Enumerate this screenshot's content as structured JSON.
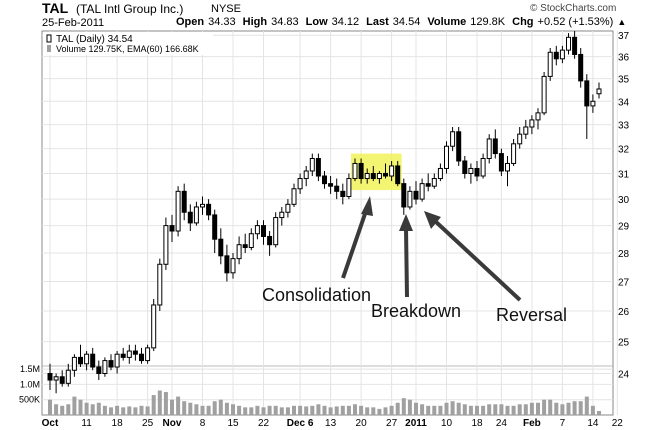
{
  "header": {
    "ticker": "TAL",
    "company": "(TAL Intl Group Inc.)",
    "exchange": "NYSE",
    "date": "25-Feb-2011",
    "quote": {
      "open_label": "Open",
      "open": "34.33",
      "high_label": "High",
      "high": "34.83",
      "low_label": "Low",
      "low": "34.12",
      "last_label": "Last",
      "last": "34.54",
      "volume_label": "Volume",
      "volume": "129.8K",
      "chg_label": "Chg",
      "chg": "+0.52 (+1.53%)"
    },
    "credit": "© StockCharts.com",
    "up_arrow_icon": "triangle-up-icon"
  },
  "legend": {
    "price": "TAL (Daily) 34.54",
    "volume": "Volume 129.75K, EMA(60) 166.68K"
  },
  "colors": {
    "up_candle": "#ffffff",
    "down_candle": "#000000",
    "volume_bar": "#a0a0a0",
    "grid": "#e4e4e4",
    "highlight": "#f2f25a"
  },
  "annotations": {
    "consolidation": "Consolidation",
    "breakdown": "Breakdown",
    "reversal": "Reversal"
  },
  "chart_data": {
    "type": "candlestick",
    "series_name": "TAL (Daily)",
    "x_tick_labels": [
      "Oct",
      "11",
      "18",
      "25",
      "Nov",
      "8",
      "15",
      "22",
      "Dec 6",
      "13",
      "20",
      "27",
      "2011",
      "10",
      "18",
      "24",
      "Feb",
      "7",
      "14",
      "22"
    ],
    "y_ticks": [
      24,
      25,
      26,
      27,
      28,
      29,
      30,
      31,
      32,
      33,
      34,
      35,
      36,
      37
    ],
    "ylim": [
      23.2,
      37.2
    ],
    "y_scale": "log",
    "volume_tick_labels": [
      "1.5M",
      "1.0M",
      "500K"
    ],
    "volume_ylim": [
      0,
      1600000
    ],
    "grid": true,
    "candles": [
      {
        "o": 24.0,
        "h": 24.3,
        "l": 23.5,
        "c": 23.8,
        "v": 500000
      },
      {
        "o": 23.8,
        "h": 24.0,
        "l": 23.4,
        "c": 23.9,
        "v": 350000
      },
      {
        "o": 23.9,
        "h": 24.1,
        "l": 23.6,
        "c": 23.7,
        "v": 300000
      },
      {
        "o": 23.7,
        "h": 24.3,
        "l": 23.6,
        "c": 24.1,
        "v": 350000
      },
      {
        "o": 24.1,
        "h": 24.6,
        "l": 23.9,
        "c": 24.5,
        "v": 600000
      },
      {
        "o": 24.5,
        "h": 24.9,
        "l": 24.2,
        "c": 24.3,
        "v": 500000
      },
      {
        "o": 24.3,
        "h": 24.7,
        "l": 24.1,
        "c": 24.6,
        "v": 400000
      },
      {
        "o": 24.6,
        "h": 24.8,
        "l": 24.1,
        "c": 24.2,
        "v": 350000
      },
      {
        "o": 24.2,
        "h": 24.4,
        "l": 23.8,
        "c": 24.0,
        "v": 400000
      },
      {
        "o": 24.0,
        "h": 24.5,
        "l": 23.9,
        "c": 24.4,
        "v": 300000
      },
      {
        "o": 24.4,
        "h": 24.6,
        "l": 24.1,
        "c": 24.2,
        "v": 250000
      },
      {
        "o": 24.2,
        "h": 24.7,
        "l": 24.0,
        "c": 24.6,
        "v": 300000
      },
      {
        "o": 24.6,
        "h": 24.8,
        "l": 24.4,
        "c": 24.5,
        "v": 250000
      },
      {
        "o": 24.5,
        "h": 24.9,
        "l": 24.3,
        "c": 24.7,
        "v": 280000
      },
      {
        "o": 24.7,
        "h": 24.9,
        "l": 24.4,
        "c": 24.6,
        "v": 250000
      },
      {
        "o": 24.6,
        "h": 24.8,
        "l": 24.3,
        "c": 24.4,
        "v": 300000
      },
      {
        "o": 24.4,
        "h": 24.9,
        "l": 24.3,
        "c": 24.8,
        "v": 280000
      },
      {
        "o": 24.8,
        "h": 26.4,
        "l": 24.7,
        "c": 26.2,
        "v": 650000
      },
      {
        "o": 26.2,
        "h": 27.8,
        "l": 26.0,
        "c": 27.6,
        "v": 800000
      },
      {
        "o": 27.6,
        "h": 29.3,
        "l": 27.4,
        "c": 29.0,
        "v": 750000
      },
      {
        "o": 29.0,
        "h": 29.4,
        "l": 28.4,
        "c": 28.8,
        "v": 500000
      },
      {
        "o": 28.8,
        "h": 30.5,
        "l": 28.6,
        "c": 30.3,
        "v": 600000
      },
      {
        "o": 30.3,
        "h": 30.6,
        "l": 29.2,
        "c": 29.5,
        "v": 450000
      },
      {
        "o": 29.5,
        "h": 29.8,
        "l": 28.8,
        "c": 29.1,
        "v": 400000
      },
      {
        "o": 29.1,
        "h": 29.9,
        "l": 29.0,
        "c": 29.7,
        "v": 350000
      },
      {
        "o": 29.7,
        "h": 30.1,
        "l": 29.4,
        "c": 29.8,
        "v": 300000
      },
      {
        "o": 29.8,
        "h": 30.0,
        "l": 29.2,
        "c": 29.4,
        "v": 300000
      },
      {
        "o": 29.4,
        "h": 29.6,
        "l": 28.0,
        "c": 28.5,
        "v": 450000
      },
      {
        "o": 28.5,
        "h": 28.9,
        "l": 27.6,
        "c": 27.9,
        "v": 500000
      },
      {
        "o": 27.9,
        "h": 28.3,
        "l": 27.0,
        "c": 27.3,
        "v": 400000
      },
      {
        "o": 27.3,
        "h": 28.0,
        "l": 27.1,
        "c": 27.8,
        "v": 350000
      },
      {
        "o": 27.8,
        "h": 28.6,
        "l": 27.6,
        "c": 28.3,
        "v": 300000
      },
      {
        "o": 28.3,
        "h": 28.7,
        "l": 28.0,
        "c": 28.2,
        "v": 250000
      },
      {
        "o": 28.2,
        "h": 28.9,
        "l": 28.1,
        "c": 28.7,
        "v": 250000
      },
      {
        "o": 28.7,
        "h": 29.2,
        "l": 28.5,
        "c": 29.0,
        "v": 300000
      },
      {
        "o": 29.0,
        "h": 29.2,
        "l": 28.3,
        "c": 28.6,
        "v": 250000
      },
      {
        "o": 28.6,
        "h": 28.8,
        "l": 27.9,
        "c": 28.3,
        "v": 300000
      },
      {
        "o": 28.3,
        "h": 29.5,
        "l": 28.2,
        "c": 29.3,
        "v": 300000
      },
      {
        "o": 29.3,
        "h": 29.7,
        "l": 29.0,
        "c": 29.5,
        "v": 250000
      },
      {
        "o": 29.5,
        "h": 30.0,
        "l": 29.3,
        "c": 29.8,
        "v": 250000
      },
      {
        "o": 29.8,
        "h": 30.6,
        "l": 29.7,
        "c": 30.4,
        "v": 300000
      },
      {
        "o": 30.4,
        "h": 31.0,
        "l": 30.2,
        "c": 30.8,
        "v": 300000
      },
      {
        "o": 30.8,
        "h": 31.3,
        "l": 30.5,
        "c": 31.1,
        "v": 280000
      },
      {
        "o": 31.1,
        "h": 31.8,
        "l": 30.9,
        "c": 31.6,
        "v": 300000
      },
      {
        "o": 31.6,
        "h": 31.8,
        "l": 30.7,
        "c": 30.9,
        "v": 350000
      },
      {
        "o": 30.9,
        "h": 31.1,
        "l": 30.4,
        "c": 30.6,
        "v": 300000
      },
      {
        "o": 30.6,
        "h": 30.9,
        "l": 30.2,
        "c": 30.5,
        "v": 250000
      },
      {
        "o": 30.5,
        "h": 30.8,
        "l": 30.0,
        "c": 30.3,
        "v": 280000
      },
      {
        "o": 30.3,
        "h": 30.6,
        "l": 29.8,
        "c": 30.1,
        "v": 300000
      },
      {
        "o": 30.1,
        "h": 31.0,
        "l": 30.0,
        "c": 30.8,
        "v": 300000
      },
      {
        "o": 30.8,
        "h": 31.6,
        "l": 30.7,
        "c": 31.4,
        "v": 350000
      },
      {
        "o": 31.4,
        "h": 31.6,
        "l": 30.6,
        "c": 30.8,
        "v": 300000
      },
      {
        "o": 30.8,
        "h": 31.2,
        "l": 30.6,
        "c": 31.0,
        "v": 250000
      },
      {
        "o": 31.0,
        "h": 31.3,
        "l": 30.7,
        "c": 30.8,
        "v": 250000
      },
      {
        "o": 30.8,
        "h": 31.1,
        "l": 30.6,
        "c": 31.0,
        "v": 200000
      },
      {
        "o": 31.0,
        "h": 31.4,
        "l": 30.8,
        "c": 30.9,
        "v": 250000
      },
      {
        "o": 30.9,
        "h": 31.5,
        "l": 30.7,
        "c": 31.3,
        "v": 300000
      },
      {
        "o": 31.3,
        "h": 31.5,
        "l": 30.5,
        "c": 30.6,
        "v": 400000
      },
      {
        "o": 30.6,
        "h": 30.8,
        "l": 29.4,
        "c": 29.7,
        "v": 550000
      },
      {
        "o": 29.7,
        "h": 30.5,
        "l": 29.6,
        "c": 30.3,
        "v": 500000
      },
      {
        "o": 30.3,
        "h": 30.7,
        "l": 29.8,
        "c": 30.0,
        "v": 400000
      },
      {
        "o": 30.0,
        "h": 30.8,
        "l": 29.9,
        "c": 30.6,
        "v": 350000
      },
      {
        "o": 30.6,
        "h": 31.0,
        "l": 30.3,
        "c": 30.5,
        "v": 300000
      },
      {
        "o": 30.5,
        "h": 31.0,
        "l": 30.4,
        "c": 30.8,
        "v": 300000
      },
      {
        "o": 30.8,
        "h": 31.4,
        "l": 30.7,
        "c": 31.2,
        "v": 300000
      },
      {
        "o": 31.2,
        "h": 32.3,
        "l": 31.0,
        "c": 32.1,
        "v": 400000
      },
      {
        "o": 32.1,
        "h": 32.9,
        "l": 31.9,
        "c": 32.7,
        "v": 450000
      },
      {
        "o": 32.7,
        "h": 32.9,
        "l": 31.3,
        "c": 31.5,
        "v": 400000
      },
      {
        "o": 31.5,
        "h": 31.7,
        "l": 30.8,
        "c": 31.0,
        "v": 350000
      },
      {
        "o": 31.0,
        "h": 31.4,
        "l": 30.6,
        "c": 31.2,
        "v": 300000
      },
      {
        "o": 31.2,
        "h": 31.5,
        "l": 30.7,
        "c": 30.9,
        "v": 300000
      },
      {
        "o": 30.9,
        "h": 31.8,
        "l": 30.8,
        "c": 31.6,
        "v": 300000
      },
      {
        "o": 31.6,
        "h": 32.6,
        "l": 31.4,
        "c": 32.4,
        "v": 350000
      },
      {
        "o": 32.4,
        "h": 32.8,
        "l": 31.6,
        "c": 31.8,
        "v": 350000
      },
      {
        "o": 31.8,
        "h": 32.0,
        "l": 30.9,
        "c": 31.1,
        "v": 350000
      },
      {
        "o": 31.1,
        "h": 31.7,
        "l": 30.5,
        "c": 31.4,
        "v": 300000
      },
      {
        "o": 31.4,
        "h": 32.4,
        "l": 31.3,
        "c": 32.2,
        "v": 300000
      },
      {
        "o": 32.2,
        "h": 32.9,
        "l": 32.0,
        "c": 32.6,
        "v": 350000
      },
      {
        "o": 32.6,
        "h": 33.2,
        "l": 32.4,
        "c": 32.9,
        "v": 350000
      },
      {
        "o": 32.9,
        "h": 33.4,
        "l": 32.6,
        "c": 33.2,
        "v": 400000
      },
      {
        "o": 33.2,
        "h": 33.7,
        "l": 32.8,
        "c": 33.5,
        "v": 400000
      },
      {
        "o": 33.5,
        "h": 35.3,
        "l": 33.4,
        "c": 35.1,
        "v": 500000
      },
      {
        "o": 35.1,
        "h": 36.4,
        "l": 34.9,
        "c": 36.2,
        "v": 500000
      },
      {
        "o": 36.2,
        "h": 36.5,
        "l": 35.6,
        "c": 35.9,
        "v": 400000
      },
      {
        "o": 35.9,
        "h": 36.5,
        "l": 35.7,
        "c": 36.3,
        "v": 350000
      },
      {
        "o": 36.3,
        "h": 37.1,
        "l": 36.1,
        "c": 36.9,
        "v": 400000
      },
      {
        "o": 36.9,
        "h": 37.2,
        "l": 35.9,
        "c": 36.1,
        "v": 450000
      },
      {
        "o": 36.1,
        "h": 36.4,
        "l": 34.6,
        "c": 34.9,
        "v": 450000
      },
      {
        "o": 34.9,
        "h": 35.2,
        "l": 32.4,
        "c": 33.8,
        "v": 600000
      },
      {
        "o": 33.8,
        "h": 34.3,
        "l": 33.5,
        "c": 34.0,
        "v": 300000
      },
      {
        "o": 34.33,
        "h": 34.83,
        "l": 34.12,
        "c": 34.54,
        "v": 129750
      }
    ]
  }
}
